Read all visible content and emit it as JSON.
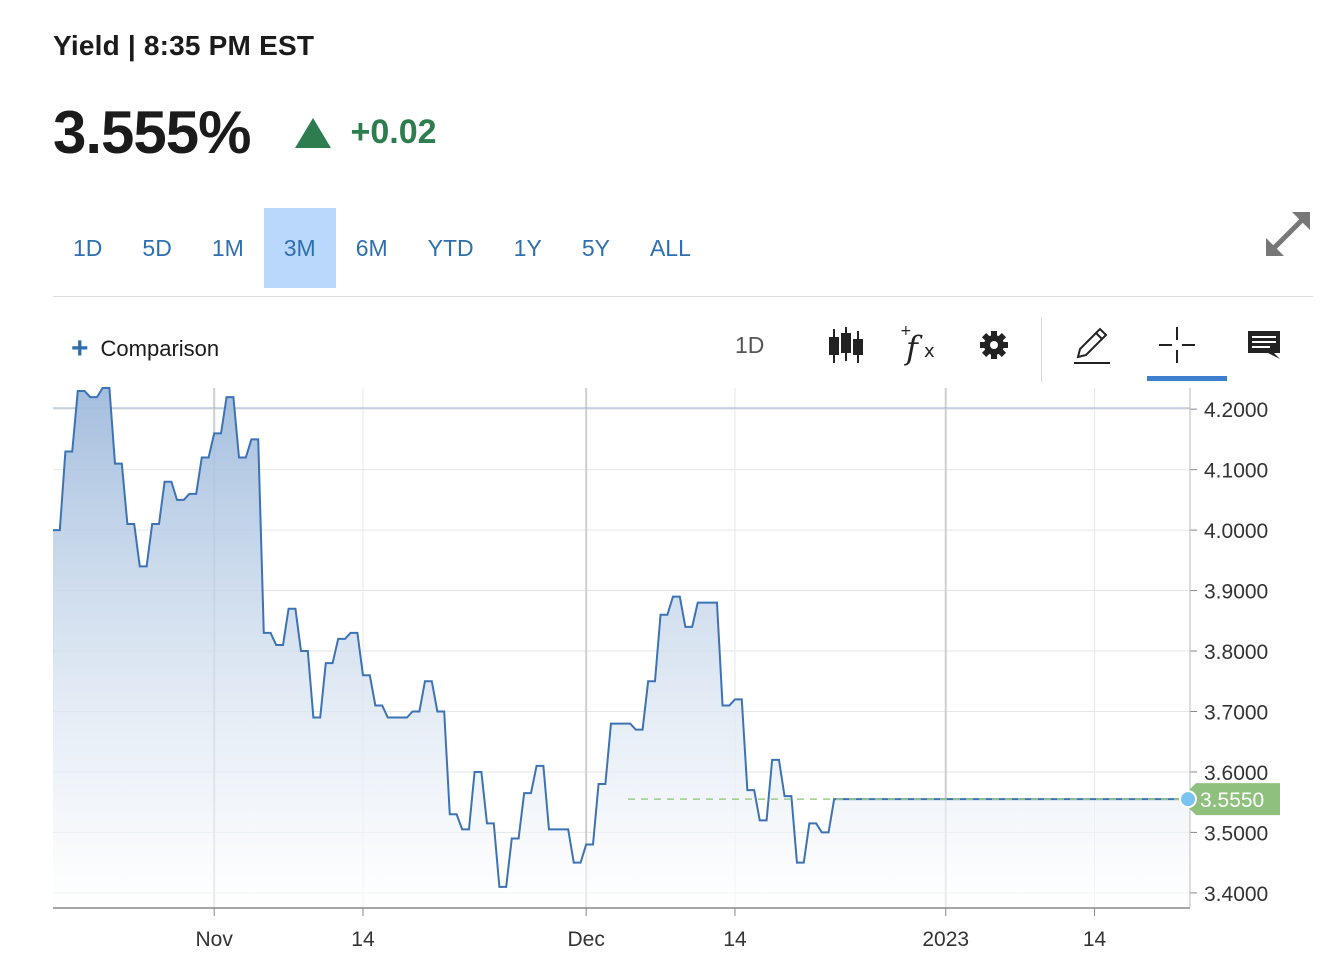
{
  "header": {
    "title": "Yield | 8:35 PM EST",
    "price": "3.555%",
    "change": "+0.02"
  },
  "ranges": [
    {
      "label": "1D",
      "active": false
    },
    {
      "label": "5D",
      "active": false
    },
    {
      "label": "1M",
      "active": false
    },
    {
      "label": "3M",
      "active": true
    },
    {
      "label": "6M",
      "active": false
    },
    {
      "label": "YTD",
      "active": false
    },
    {
      "label": "1Y",
      "active": false
    },
    {
      "label": "5Y",
      "active": false
    },
    {
      "label": "ALL",
      "active": false
    }
  ],
  "toolbar": {
    "comparison_label": "Comparison",
    "interval_label": "1D",
    "icons": [
      "candlestick-icon",
      "function-icon",
      "gear-icon",
      "pencil-icon",
      "crosshair-icon",
      "comment-icon"
    ],
    "active_tool": "crosshair-icon"
  },
  "colors": {
    "line": "#3d72b4",
    "fill_top": "#a3bfe0",
    "up": "#2e7d4f",
    "active_range": "#b9d8fb",
    "price_tag": "#8fc07e"
  },
  "chart_data": {
    "type": "area",
    "x_labels": [
      "Nov",
      "14",
      "Dec",
      "14",
      "2023",
      "14"
    ],
    "y_ticks": [
      "4.2000",
      "4.1000",
      "4.0000",
      "3.9000",
      "3.8000",
      "3.7000",
      "3.6000",
      "3.5000",
      "3.4000"
    ],
    "ylim": [
      3.375,
      4.235
    ],
    "grid": true,
    "last_value_label": "3.5550",
    "last_value": 3.555,
    "x_range": [
      0,
      91.7
    ],
    "x_tick_positions": [
      13,
      25,
      43,
      55,
      72,
      84
    ],
    "values": [
      [
        0,
        4.0
      ],
      [
        1,
        4.13
      ],
      [
        2,
        4.23
      ],
      [
        3,
        4.22
      ],
      [
        4,
        4.235
      ],
      [
        5,
        4.11
      ],
      [
        6,
        4.01
      ],
      [
        7,
        3.94
      ],
      [
        8,
        4.01
      ],
      [
        9,
        4.08
      ],
      [
        10,
        4.05
      ],
      [
        11,
        4.06
      ],
      [
        12,
        4.12
      ],
      [
        13,
        4.16
      ],
      [
        14,
        4.22
      ],
      [
        15,
        4.12
      ],
      [
        16,
        4.15
      ],
      [
        17,
        3.83
      ],
      [
        18,
        3.81
      ],
      [
        19,
        3.87
      ],
      [
        20,
        3.8
      ],
      [
        21,
        3.69
      ],
      [
        22,
        3.78
      ],
      [
        23,
        3.82
      ],
      [
        24,
        3.83
      ],
      [
        25,
        3.76
      ],
      [
        26,
        3.71
      ],
      [
        27,
        3.69
      ],
      [
        28,
        3.69
      ],
      [
        29,
        3.7
      ],
      [
        30,
        3.75
      ],
      [
        31,
        3.7
      ],
      [
        32,
        3.53
      ],
      [
        33,
        3.505
      ],
      [
        34,
        3.6
      ],
      [
        35,
        3.515
      ],
      [
        36,
        3.41
      ],
      [
        37,
        3.49
      ],
      [
        38,
        3.565
      ],
      [
        39,
        3.61
      ],
      [
        40,
        3.505
      ],
      [
        41,
        3.505
      ],
      [
        42,
        3.45
      ],
      [
        43,
        3.48
      ],
      [
        44,
        3.58
      ],
      [
        45,
        3.68
      ],
      [
        46,
        3.68
      ],
      [
        47,
        3.67
      ],
      [
        48,
        3.75
      ],
      [
        49,
        3.86
      ],
      [
        50,
        3.89
      ],
      [
        51,
        3.84
      ],
      [
        52,
        3.88
      ],
      [
        53,
        3.88
      ],
      [
        54,
        3.71
      ],
      [
        55,
        3.72
      ],
      [
        56,
        3.57
      ],
      [
        57,
        3.52
      ],
      [
        58,
        3.62
      ],
      [
        59,
        3.56
      ],
      [
        60,
        3.45
      ],
      [
        61,
        3.515
      ],
      [
        62,
        3.5
      ],
      [
        63,
        3.555
      ]
    ]
  }
}
